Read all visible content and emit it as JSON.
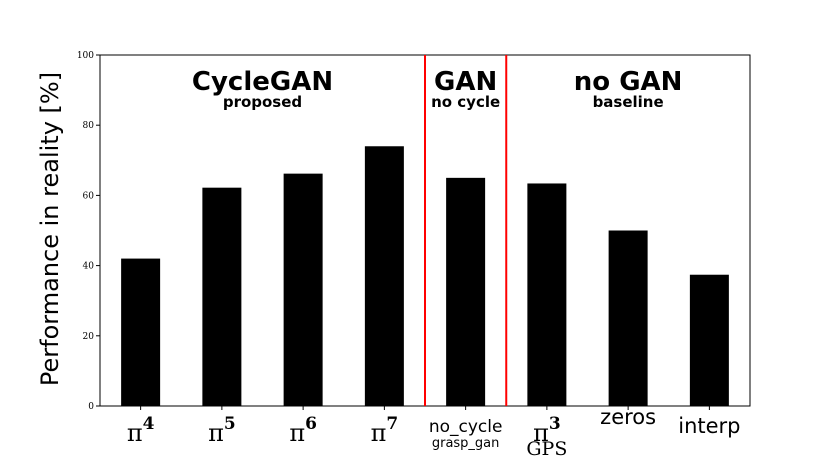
{
  "chart_data": {
    "type": "bar",
    "ylabel": "Performance in reality [%]",
    "ylim": [
      0,
      100
    ],
    "yticks": [
      0,
      20,
      40,
      60,
      80,
      100
    ],
    "colors": {
      "bar": "#000000",
      "separator": "#ff0000",
      "axis": "#000000"
    },
    "categories": [
      {
        "base": "π",
        "sup": "4",
        "sub": "",
        "style": "math"
      },
      {
        "base": "π",
        "sup": "5",
        "sub": "",
        "style": "math"
      },
      {
        "base": "π",
        "sup": "6",
        "sub": "",
        "style": "math"
      },
      {
        "base": "π",
        "sup": "7",
        "sub": "",
        "style": "math"
      },
      {
        "base": "no_cycle",
        "sup": "",
        "sub": "grasp_gan",
        "style": "text"
      },
      {
        "base": "π",
        "sup": "3",
        "sub": "GPS",
        "style": "math"
      },
      {
        "base": "zeros",
        "sup": "",
        "sub": "",
        "style": "text"
      },
      {
        "base": "interp",
        "sup": "",
        "sub": "",
        "style": "text"
      }
    ],
    "values": [
      42,
      62.2,
      66.2,
      74,
      65,
      63.4,
      50,
      37.4
    ],
    "groups": [
      {
        "title": "CycleGAN",
        "subtitle": "proposed",
        "start": 0,
        "end": 3
      },
      {
        "title": "GAN",
        "subtitle": "no cycle",
        "start": 4,
        "end": 4
      },
      {
        "title": "no GAN",
        "subtitle": "baseline",
        "start": 5,
        "end": 7
      }
    ]
  }
}
